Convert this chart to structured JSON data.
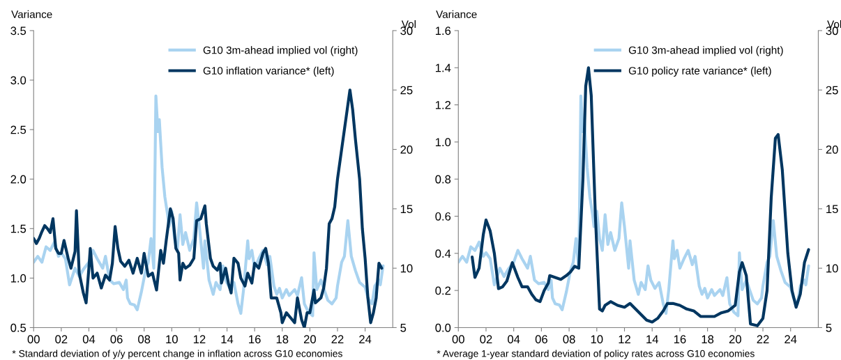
{
  "chart_data": [
    {
      "type": "line",
      "ylabel": "Variance",
      "y2label": "Vol",
      "xlim": [
        2000,
        2026
      ],
      "xticks": [
        {
          "value": 2000,
          "label": "00"
        },
        {
          "value": 2002,
          "label": "02"
        },
        {
          "value": 2004,
          "label": "04"
        },
        {
          "value": 2006,
          "label": "06"
        },
        {
          "value": 2008,
          "label": "08"
        },
        {
          "value": 2010,
          "label": "10"
        },
        {
          "value": 2012,
          "label": "12"
        },
        {
          "value": 2014,
          "label": "14"
        },
        {
          "value": 2016,
          "label": "16"
        },
        {
          "value": 2018,
          "label": "18"
        },
        {
          "value": 2020,
          "label": "20"
        },
        {
          "value": 2022,
          "label": "22"
        },
        {
          "value": 2024,
          "label": "24"
        }
      ],
      "ylim": [
        0.5,
        3.5
      ],
      "yticks": [
        0.5,
        {
          "value": 1,
          "label": "1.0"
        },
        1.5,
        {
          "value": 2,
          "label": "2.0"
        },
        2.5,
        {
          "value": 3,
          "label": "3.0"
        },
        3.5
      ],
      "y2lim": [
        5,
        30
      ],
      "y2ticks": [
        5,
        10,
        15,
        20,
        25,
        30
      ],
      "grid": false,
      "legend": "top right",
      "marker": "none",
      "line_style": "solid",
      "annotations": [
        "* Standard deviation of y/y percent change in inflation across G10 economies"
      ],
      "series": [
        {
          "name": "G10 3m-ahead implied vol (right)",
          "color": "#a9d3f0",
          "axis": "y2",
          "x": [
            2000.0,
            2000.3,
            2000.6,
            2000.9,
            2001.2,
            2001.5,
            2001.8,
            2002.0,
            2002.3,
            2002.6,
            2003.0,
            2003.3,
            2003.6,
            2004.0,
            2004.3,
            2004.6,
            2005.0,
            2005.2,
            2005.5,
            2005.8,
            2006.2,
            2006.5,
            2006.7,
            2006.8,
            2007.0,
            2007.3,
            2007.5,
            2007.8,
            2008.1,
            2008.3,
            2008.5,
            2008.7,
            2008.85,
            2009.0,
            2009.1,
            2009.3,
            2009.5,
            2009.7,
            2009.8,
            2010.0,
            2010.2,
            2010.4,
            2010.6,
            2010.8,
            2011.0,
            2011.3,
            2011.6,
            2011.8,
            2012.0,
            2012.3,
            2012.4,
            2012.7,
            2013.0,
            2013.2,
            2013.5,
            2013.7,
            2013.9,
            2014.2,
            2014.5,
            2014.8,
            2015.0,
            2015.2,
            2015.5,
            2015.6,
            2015.8,
            2016.0,
            2016.3,
            2016.6,
            2016.9,
            2017.1,
            2017.4,
            2017.6,
            2017.8,
            2018.0,
            2018.3,
            2018.5,
            2018.9,
            2019.1,
            2019.4,
            2019.6,
            2019.9,
            2020.2,
            2020.3,
            2020.5,
            2020.8,
            2021.0,
            2021.3,
            2021.6,
            2021.9,
            2022.0,
            2022.3,
            2022.5,
            2022.75,
            2023.0,
            2023.3,
            2023.6,
            2024.0,
            2024.2,
            2024.5,
            2024.7,
            2025.0,
            2025.1,
            2025.3
          ],
          "values": [
            10.5,
            11.0,
            10.5,
            11.8,
            11.5,
            12.2,
            11.0,
            11.3,
            10.8,
            8.6,
            10.0,
            9.3,
            9.9,
            10.5,
            11.5,
            10.8,
            10.0,
            11.0,
            9.0,
            8.7,
            8.8,
            8.2,
            9.0,
            7.5,
            7.0,
            6.9,
            6.5,
            8.0,
            9.8,
            10.5,
            12.5,
            10.0,
            24.5,
            21.5,
            22.5,
            18.5,
            16.0,
            14.5,
            13.5,
            14.8,
            12.5,
            11.5,
            14.5,
            12.0,
            13.0,
            11.5,
            12.5,
            15.5,
            13.5,
            10.0,
            12.3,
            9.0,
            7.8,
            8.8,
            8.2,
            10.2,
            9.0,
            8.3,
            8.8,
            7.0,
            6.2,
            8.2,
            12.3,
            10.8,
            11.5,
            10.0,
            10.8,
            11.5,
            10.3,
            11.0,
            8.5,
            7.8,
            8.3,
            7.5,
            8.2,
            7.7,
            8.2,
            7.7,
            9.2,
            7.0,
            6.3,
            6.0,
            11.3,
            8.2,
            9.0,
            8.3,
            7.3,
            7.0,
            7.5,
            8.5,
            10.5,
            11.0,
            14.0,
            11.0,
            9.8,
            8.8,
            8.4,
            7.5,
            7.0,
            8.5,
            9.0,
            8.6,
            10.2
          ]
        },
        {
          "name": "G10 inflation variance* (left)",
          "color": "#003660",
          "x": [
            2000.0,
            2000.2,
            2000.4,
            2000.6,
            2000.8,
            2001.0,
            2001.2,
            2001.4,
            2001.6,
            2001.8,
            2002.0,
            2002.2,
            2002.5,
            2002.7,
            2003.0,
            2003.1,
            2003.3,
            2003.6,
            2003.8,
            2004.0,
            2004.1,
            2004.3,
            2004.6,
            2004.9,
            2005.2,
            2005.5,
            2005.7,
            2005.9,
            2006.1,
            2006.3,
            2006.6,
            2006.9,
            2007.2,
            2007.5,
            2007.8,
            2008.0,
            2008.3,
            2008.6,
            2008.9,
            2009.2,
            2009.4,
            2009.6,
            2009.9,
            2010.1,
            2010.3,
            2010.5,
            2010.6,
            2010.8,
            2011.0,
            2011.3,
            2011.6,
            2011.8,
            2012.1,
            2012.4,
            2012.5,
            2012.8,
            2013.0,
            2013.3,
            2013.5,
            2013.6,
            2013.9,
            2014.1,
            2014.3,
            2014.5,
            2014.8,
            2015.0,
            2015.3,
            2015.5,
            2015.8,
            2016.0,
            2016.3,
            2016.6,
            2016.8,
            2017.0,
            2017.2,
            2017.6,
            2017.9,
            2018.0,
            2018.3,
            2018.6,
            2018.9,
            2019.1,
            2019.4,
            2019.6,
            2019.8,
            2020.0,
            2020.3,
            2020.4,
            2020.8,
            2021.0,
            2021.2,
            2021.4,
            2021.6,
            2021.8,
            2022.0,
            2022.3,
            2022.5,
            2022.7,
            2022.9,
            2023.1,
            2023.3,
            2023.6,
            2023.8,
            2024.0,
            2024.2,
            2024.4,
            2024.6,
            2024.8,
            2025.0,
            2025.2
          ],
          "values": [
            1.4,
            1.35,
            1.4,
            1.47,
            1.53,
            1.5,
            1.46,
            1.6,
            1.3,
            1.25,
            1.25,
            1.38,
            1.2,
            1.1,
            1.27,
            1.68,
            1.05,
            0.85,
            0.75,
            1.1,
            1.3,
            1.0,
            1.05,
            0.9,
            1.03,
            0.98,
            1.15,
            1.52,
            1.3,
            1.17,
            1.12,
            1.18,
            1.05,
            1.2,
            1.05,
            1.25,
            1.02,
            1.05,
            0.88,
            1.28,
            1.15,
            1.38,
            1.7,
            1.6,
            1.3,
            1.25,
            0.98,
            1.15,
            1.1,
            1.13,
            1.2,
            1.58,
            1.6,
            1.73,
            1.55,
            1.2,
            1.12,
            1.08,
            1.15,
            0.95,
            1.1,
            0.95,
            0.85,
            1.2,
            1.15,
            1.0,
            0.92,
            1.05,
            0.95,
            1.15,
            1.1,
            1.25,
            1.3,
            1.15,
            0.8,
            0.8,
            0.65,
            0.55,
            0.65,
            0.6,
            0.55,
            0.8,
            0.58,
            0.5,
            0.65,
            0.65,
            0.88,
            0.75,
            0.8,
            0.9,
            1.1,
            1.55,
            1.6,
            1.72,
            2.0,
            2.3,
            2.5,
            2.7,
            2.9,
            2.7,
            2.4,
            2.0,
            1.5,
            1.2,
            0.8,
            0.55,
            0.65,
            0.8,
            1.15,
            1.1
          ]
        }
      ]
    },
    {
      "type": "line",
      "ylabel": "Variance",
      "y2label": "Vol",
      "xlim": [
        2000,
        2026
      ],
      "xticks": [
        {
          "value": 2000,
          "label": "00"
        },
        {
          "value": 2002,
          "label": "02"
        },
        {
          "value": 2004,
          "label": "04"
        },
        {
          "value": 2006,
          "label": "06"
        },
        {
          "value": 2008,
          "label": "08"
        },
        {
          "value": 2010,
          "label": "10"
        },
        {
          "value": 2012,
          "label": "12"
        },
        {
          "value": 2014,
          "label": "14"
        },
        {
          "value": 2016,
          "label": "16"
        },
        {
          "value": 2018,
          "label": "18"
        },
        {
          "value": 2020,
          "label": "20"
        },
        {
          "value": 2022,
          "label": "22"
        },
        {
          "value": 2024,
          "label": "24"
        }
      ],
      "ylim": [
        0,
        1.6
      ],
      "yticks": [
        {
          "value": 0,
          "label": "0.0"
        },
        0.2,
        0.4,
        0.6,
        0.8,
        {
          "value": 1,
          "label": "1.0"
        },
        1.2,
        1.4,
        1.6
      ],
      "y2lim": [
        5,
        30
      ],
      "y2ticks": [
        5,
        10,
        15,
        20,
        25,
        30
      ],
      "grid": false,
      "legend": "top right",
      "marker": "none",
      "line_style": "solid",
      "annotations": [
        "* Average 1-year standard deviation of policy rates across G10 economies"
      ],
      "series": [
        {
          "name": "G10 3m-ahead implied vol (right)",
          "color": "#a9d3f0",
          "axis": "y2",
          "x": [
            2000.0,
            2000.3,
            2000.6,
            2000.9,
            2001.2,
            2001.5,
            2001.8,
            2002.0,
            2002.3,
            2002.6,
            2003.0,
            2003.3,
            2003.6,
            2004.0,
            2004.3,
            2004.6,
            2005.0,
            2005.2,
            2005.5,
            2005.8,
            2006.2,
            2006.5,
            2006.7,
            2006.8,
            2007.0,
            2007.3,
            2007.5,
            2007.8,
            2008.1,
            2008.3,
            2008.5,
            2008.7,
            2008.85,
            2009.0,
            2009.1,
            2009.3,
            2009.5,
            2009.7,
            2009.8,
            2010.0,
            2010.2,
            2010.4,
            2010.6,
            2010.8,
            2011.0,
            2011.3,
            2011.6,
            2011.8,
            2012.0,
            2012.3,
            2012.4,
            2012.7,
            2013.0,
            2013.2,
            2013.5,
            2013.7,
            2013.9,
            2014.2,
            2014.5,
            2014.8,
            2015.0,
            2015.2,
            2015.5,
            2015.6,
            2015.8,
            2016.0,
            2016.3,
            2016.6,
            2016.9,
            2017.1,
            2017.4,
            2017.6,
            2017.8,
            2018.0,
            2018.3,
            2018.5,
            2018.9,
            2019.1,
            2019.4,
            2019.6,
            2019.9,
            2020.2,
            2020.3,
            2020.5,
            2020.8,
            2021.0,
            2021.3,
            2021.6,
            2021.9,
            2022.0,
            2022.3,
            2022.5,
            2022.75,
            2023.0,
            2023.3,
            2023.6,
            2024.0,
            2024.2,
            2024.5,
            2024.7,
            2025.0,
            2025.1,
            2025.3
          ],
          "values": [
            10.5,
            11.0,
            10.5,
            11.8,
            11.5,
            12.2,
            11.0,
            11.3,
            10.8,
            8.6,
            10.0,
            9.3,
            9.9,
            10.5,
            11.5,
            10.8,
            10.0,
            11.0,
            9.0,
            8.7,
            8.8,
            8.2,
            9.0,
            7.5,
            7.0,
            6.9,
            6.5,
            8.0,
            9.8,
            10.5,
            12.5,
            10.0,
            24.5,
            21.5,
            22.5,
            18.5,
            16.0,
            14.5,
            13.5,
            14.8,
            12.5,
            11.5,
            14.5,
            12.0,
            13.0,
            11.5,
            12.5,
            15.5,
            13.5,
            10.0,
            12.3,
            9.0,
            7.8,
            8.8,
            8.2,
            10.2,
            9.0,
            8.3,
            8.8,
            7.0,
            6.2,
            8.2,
            12.3,
            10.8,
            11.5,
            10.0,
            10.8,
            11.5,
            10.3,
            11.0,
            8.5,
            7.8,
            8.3,
            7.5,
            8.2,
            7.7,
            8.2,
            7.7,
            9.2,
            7.0,
            6.3,
            6.0,
            11.3,
            8.2,
            9.0,
            8.3,
            7.3,
            7.0,
            7.5,
            8.5,
            10.5,
            11.0,
            14.0,
            11.0,
            9.8,
            8.8,
            8.4,
            7.5,
            7.0,
            8.5,
            9.0,
            8.6,
            10.2
          ]
        },
        {
          "name": "G10 policy rate variance* (left)",
          "color": "#003660",
          "x": [
            2001.0,
            2001.2,
            2001.5,
            2001.8,
            2002.0,
            2002.3,
            2002.6,
            2002.9,
            2003.2,
            2003.5,
            2003.9,
            2004.3,
            2004.6,
            2005.0,
            2005.3,
            2005.6,
            2005.9,
            2006.2,
            2006.5,
            2006.6,
            2007.0,
            2007.4,
            2007.8,
            2008.1,
            2008.4,
            2008.7,
            2009.0,
            2009.2,
            2009.4,
            2009.6,
            2009.9,
            2010.2,
            2010.4,
            2010.6,
            2011.0,
            2011.5,
            2012.0,
            2012.4,
            2012.8,
            2013.2,
            2013.6,
            2014.0,
            2014.4,
            2014.8,
            2015.1,
            2015.5,
            2016.0,
            2016.5,
            2017.0,
            2017.5,
            2018.0,
            2018.5,
            2019.0,
            2019.5,
            2020.0,
            2020.3,
            2020.5,
            2020.8,
            2021.1,
            2021.6,
            2022.0,
            2022.3,
            2022.6,
            2022.9,
            2023.1,
            2023.4,
            2023.8,
            2024.1,
            2024.4,
            2024.7,
            2025.0,
            2025.3
          ],
          "values": [
            0.38,
            0.27,
            0.32,
            0.5,
            0.58,
            0.52,
            0.4,
            0.21,
            0.22,
            0.25,
            0.35,
            0.27,
            0.22,
            0.22,
            0.18,
            0.15,
            0.14,
            0.2,
            0.24,
            0.28,
            0.27,
            0.26,
            0.28,
            0.3,
            0.33,
            0.32,
            0.8,
            1.3,
            1.4,
            1.25,
            0.6,
            0.1,
            0.09,
            0.12,
            0.14,
            0.12,
            0.11,
            0.13,
            0.1,
            0.07,
            0.04,
            0.03,
            0.05,
            0.09,
            0.13,
            0.13,
            0.12,
            0.1,
            0.09,
            0.06,
            0.06,
            0.06,
            0.08,
            0.09,
            0.12,
            0.3,
            0.35,
            0.28,
            0.02,
            0.01,
            0.05,
            0.2,
            0.7,
            1.02,
            1.04,
            0.85,
            0.4,
            0.2,
            0.11,
            0.18,
            0.35,
            0.42
          ]
        }
      ]
    }
  ]
}
